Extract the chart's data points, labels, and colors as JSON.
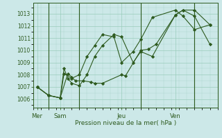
{
  "background_color": "#cce8e8",
  "grid_color": "#99ccbb",
  "line_color": "#2d5a1e",
  "marker_color": "#2d5a1e",
  "ylabel_ticks": [
    1006,
    1007,
    1008,
    1009,
    1010,
    1011,
    1012,
    1013
  ],
  "ylim": [
    1005.3,
    1013.9
  ],
  "xlabel": "Pression niveau de la mer( hPa )",
  "day_labels": [
    "Mer",
    "Sam",
    "Jeu",
    "Ven"
  ],
  "day_positions": [
    0.5,
    3.5,
    11.5,
    18.5
  ],
  "vlines_x": [
    2,
    6,
    14,
    21
  ],
  "xlim": [
    0,
    24
  ],
  "series1_x": [
    0.5,
    2,
    3.5,
    4.5,
    5,
    5.5,
    6.5,
    7.5,
    8,
    9,
    11.5,
    12,
    14,
    15,
    16,
    18.5,
    19.5,
    21,
    23
  ],
  "series1_y": [
    1007.0,
    1006.3,
    1006.1,
    1008.1,
    1007.8,
    1007.5,
    1007.5,
    1007.4,
    1007.3,
    1007.3,
    1008.0,
    1007.9,
    1010.0,
    1010.1,
    1010.5,
    1012.9,
    1013.3,
    1013.3,
    1012.1
  ],
  "series2_x": [
    0.5,
    2,
    3.5,
    4,
    4.5,
    5,
    6,
    7,
    8,
    9,
    10.5,
    11.5,
    13,
    14,
    15.5,
    18.5,
    19.5,
    21,
    23
  ],
  "series2_y": [
    1007.0,
    1006.3,
    1006.1,
    1008.5,
    1007.7,
    1007.3,
    1007.1,
    1008.0,
    1009.5,
    1010.4,
    1011.3,
    1011.1,
    1009.0,
    1009.9,
    1009.5,
    1012.9,
    1013.3,
    1012.8,
    1010.5
  ],
  "series3_x": [
    0.5,
    2,
    3.5,
    4,
    5,
    6,
    7,
    8,
    9,
    10.5,
    11.5,
    13,
    14,
    15.5,
    18.5,
    19.5,
    21,
    23
  ],
  "series3_y": [
    1007.0,
    1006.3,
    1006.1,
    1008.1,
    1007.7,
    1008.0,
    1009.5,
    1010.4,
    1011.3,
    1011.1,
    1009.0,
    1009.9,
    1010.9,
    1012.7,
    1013.3,
    1012.8,
    1011.7,
    1012.1
  ],
  "figsize": [
    3.2,
    2.0
  ],
  "dpi": 100
}
